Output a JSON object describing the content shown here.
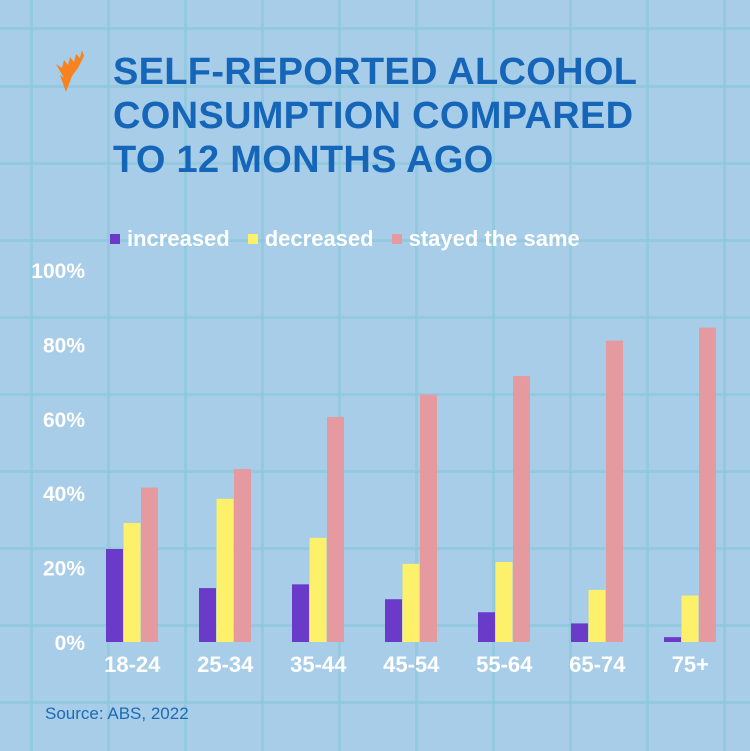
{
  "title_lines": [
    "SELF-REPORTED ALCOHOL",
    "CONSUMPTION COMPARED",
    "TO 12 MONTHS AGO"
  ],
  "logo": {
    "name": "sbs-logo",
    "color": "#f7821e"
  },
  "source": "Source: ABS, 2022",
  "chart_data": {
    "type": "bar",
    "title": "SELF-REPORTED ALCOHOL CONSUMPTION COMPARED TO 12 MONTHS AGO",
    "categories": [
      "18-24",
      "25-34",
      "35-44",
      "45-54",
      "55-64",
      "65-74",
      "75+"
    ],
    "series": [
      {
        "name": "increased",
        "color": "#6a3bc9",
        "values": [
          25,
          14.5,
          15.5,
          11.5,
          8,
          5,
          1.3
        ]
      },
      {
        "name": "decreased",
        "color": "#fdf06a",
        "values": [
          32,
          38.5,
          28,
          21,
          21.5,
          14,
          12.5
        ]
      },
      {
        "name": "stayed the same",
        "color": "#e59aa0",
        "values": [
          41.5,
          46.5,
          60.5,
          66.5,
          71.5,
          81,
          84.5
        ]
      }
    ],
    "yticks": [
      "0%",
      "20%",
      "40%",
      "60%",
      "80%",
      "100%"
    ],
    "ylim": [
      0,
      100
    ],
    "legend": "top",
    "grid": false
  }
}
